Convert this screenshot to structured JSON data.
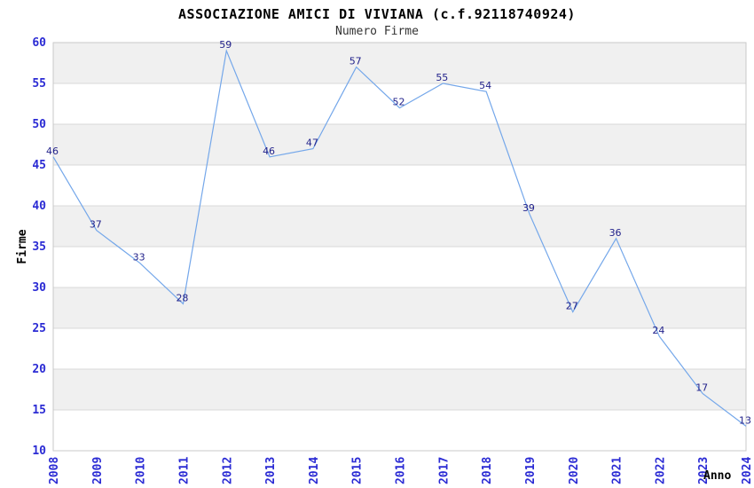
{
  "header": {
    "title": "ASSOCIAZIONE AMICI DI VIVIANA (c.f.92118740924)",
    "subtitle": "Numero Firme"
  },
  "chart_data": {
    "type": "line",
    "title": "ASSOCIAZIONE AMICI DI VIVIANA (c.f.92118740924)",
    "subtitle": "Numero Firme",
    "xlabel": "Anno",
    "ylabel": "Firme",
    "x": [
      2008,
      2009,
      2010,
      2011,
      2012,
      2013,
      2014,
      2015,
      2016,
      2017,
      2018,
      2019,
      2020,
      2021,
      2022,
      2023,
      2024
    ],
    "values": [
      46,
      37,
      33,
      28,
      59,
      46,
      47,
      57,
      52,
      55,
      54,
      39,
      27,
      36,
      24,
      17,
      13
    ],
    "ylim": [
      10,
      60
    ],
    "ytick_step": 5,
    "yticks": [
      10,
      15,
      20,
      25,
      30,
      35,
      40,
      45,
      50,
      55,
      60
    ],
    "grid": true,
    "alternating_bands": true,
    "point_labels_shown": true,
    "legend_position": "none",
    "colors": {
      "line": "#74a7ea",
      "tick_label": "#2b2bd4",
      "value_label": "#22228b",
      "band": "#f0f0f0",
      "grid": "#d8d8d8",
      "border": "#c9c9c9",
      "axis_label": "#000000",
      "background": "#ffffff"
    }
  }
}
